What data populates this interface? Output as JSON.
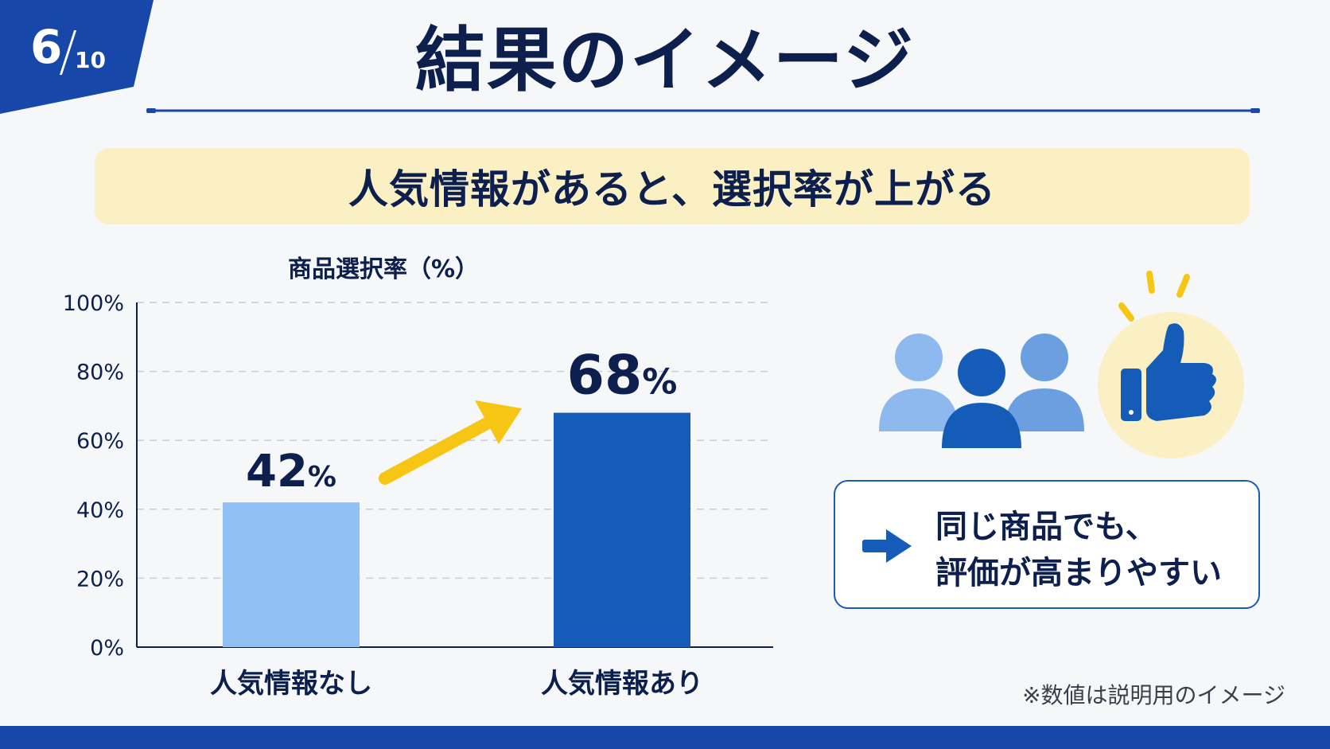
{
  "page": {
    "current": "6",
    "total": "10"
  },
  "title": "結果のイメージ",
  "banner": "人気情報があると、選択率が上がる",
  "chart_data": {
    "type": "bar",
    "ylabel": "商品選択率（%）",
    "categories": [
      "人気情報なし",
      "人気情報あり"
    ],
    "values": [
      42,
      68
    ],
    "data_labels": [
      {
        "number": "42",
        "unit": "%"
      },
      {
        "number": "68",
        "unit": "%"
      }
    ],
    "ylim": [
      0,
      100
    ],
    "yticks": [
      "0%",
      "20%",
      "40%",
      "60%",
      "80%",
      "100%"
    ],
    "grid": true,
    "bar_colors": [
      "#92c0f5",
      "#155cb9"
    ],
    "arrow_color": "#f7c514"
  },
  "note": {
    "line1": "同じ商品でも、",
    "line2": "評価が高まりやすい"
  },
  "footnote": "※数値は説明用のイメージ",
  "colors": {
    "primary": "#1747a8",
    "navy": "#0c1f4d",
    "banner_bg": "#fbefc4",
    "accent_yellow": "#f7c514"
  },
  "icons": [
    "people-group-icon",
    "thumbs-up-icon",
    "arrow-right-icon"
  ]
}
